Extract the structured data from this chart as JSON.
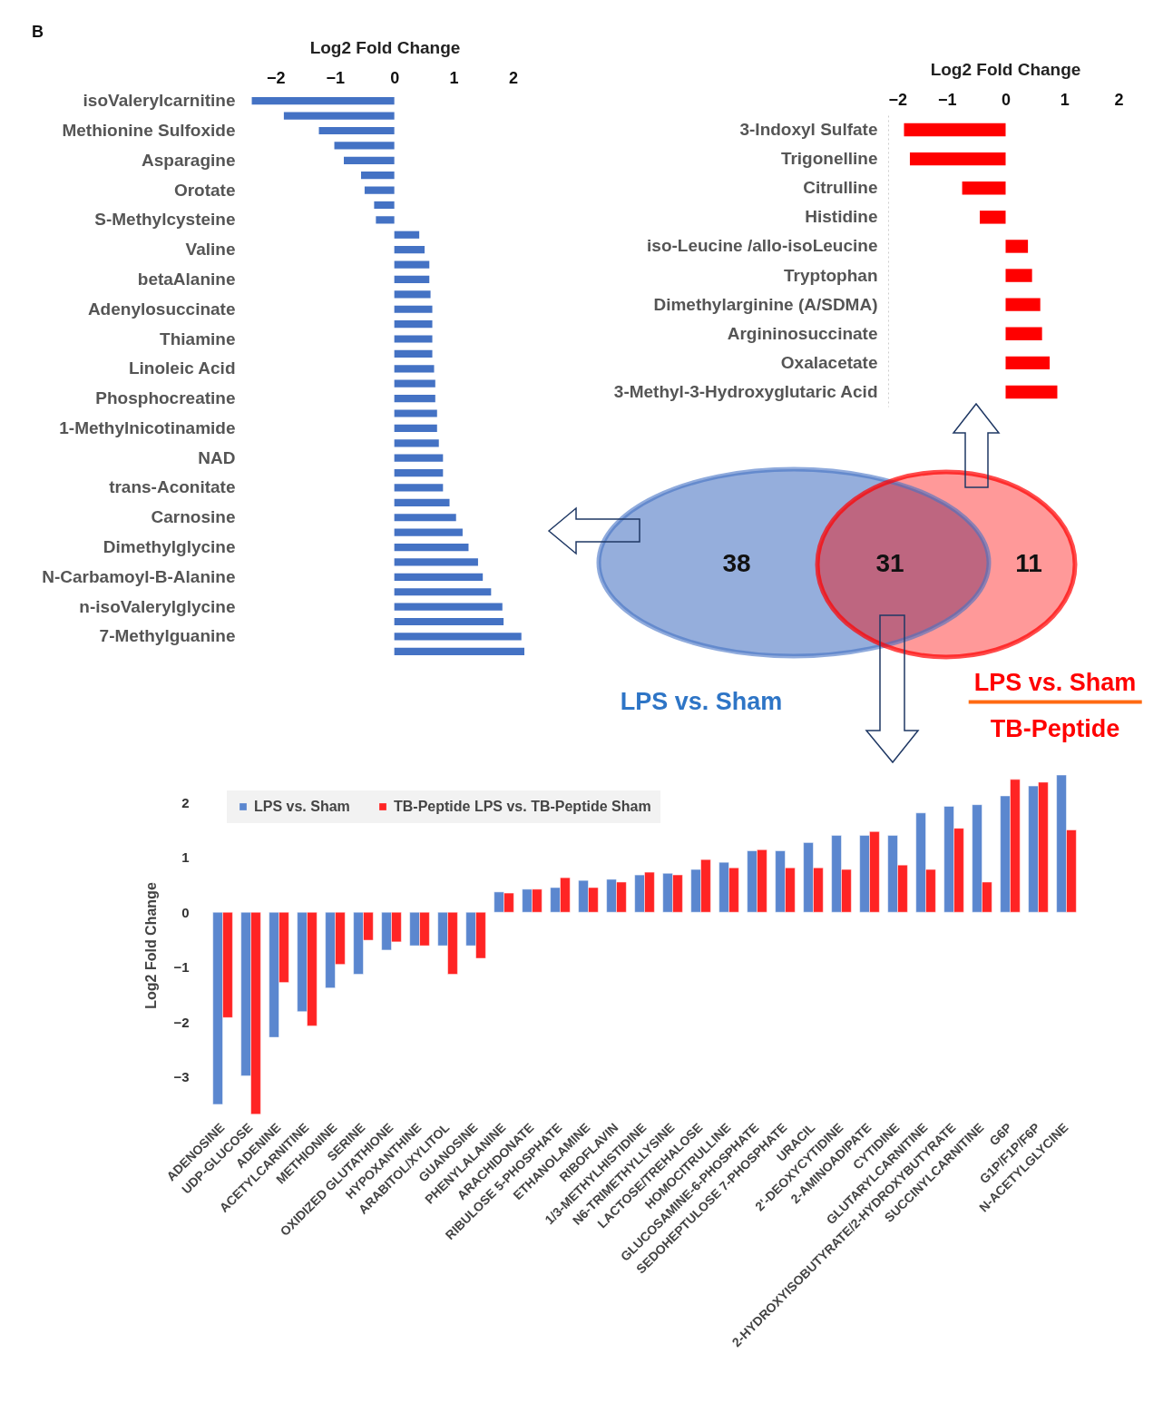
{
  "chart_data": [
    {
      "type": "bar",
      "orientation": "horizontal",
      "title": "Log2 Fold Change",
      "annotations": [
        "B"
      ],
      "categories": [
        "isoValerylcarnitine",
        null,
        "Methionine Sulfoxide",
        null,
        "Asparagine",
        null,
        "Orotate",
        null,
        "S-Methylcysteine",
        null,
        "Valine",
        null,
        "betaAlanine",
        null,
        "Adenylosuccinate",
        null,
        "Thiamine",
        null,
        "Linoleic Acid",
        null,
        "Phosphocreatine",
        null,
        "1-Methylnicotinamide",
        null,
        "NAD",
        null,
        "trans-Aconitate",
        null,
        "Carnosine",
        null,
        "Dimethylglycine",
        null,
        "N-Carbamoyl-B-Alanine",
        null,
        "n-isoValerylglycine",
        null,
        "7-Methylguanine",
        null
      ],
      "values": [
        -2.4,
        -1.86,
        -1.27,
        -1.01,
        -0.85,
        -0.56,
        -0.5,
        -0.34,
        -0.31,
        0.42,
        0.51,
        0.59,
        0.59,
        0.61,
        0.64,
        0.64,
        0.64,
        0.64,
        0.67,
        0.69,
        0.69,
        0.72,
        0.72,
        0.75,
        0.82,
        0.82,
        0.82,
        0.93,
        1.04,
        1.15,
        1.25,
        1.41,
        1.49,
        1.63,
        1.82,
        1.84,
        2.14,
        2.19
      ],
      "color": "#4472c4",
      "xlim": [
        -2.5,
        2.19
      ],
      "xticks": [
        -2,
        -1,
        0,
        1,
        2
      ]
    },
    {
      "type": "bar",
      "orientation": "horizontal",
      "title": "Log2 Fold Change",
      "categories": [
        "3-Indoxyl Sulfate",
        "Trigonelline",
        "Citrulline",
        "Histidine",
        "iso-Leucine /allo-isoLeucine",
        "Tryptophan",
        "Dimethylarginine (A/SDMA)",
        "Argininosuccinate",
        "Oxalacetate",
        "3-Methyl-3-Hydroxyglutaric Acid"
      ],
      "values": [
        -1.73,
        -1.63,
        -0.74,
        -0.44,
        0.38,
        0.45,
        0.59,
        0.62,
        0.75,
        0.88
      ],
      "color": "#ff0000",
      "xlim": [
        -2,
        2
      ],
      "xticks": [
        -2,
        -1,
        0,
        1,
        2
      ]
    },
    {
      "type": "other",
      "values": [
        38,
        31,
        11
      ],
      "data_labels": true,
      "colors": [
        "#95aedc",
        "#be6680",
        "#ff9999"
      ],
      "annotations": [
        "LPS vs. Sham",
        "LPS vs. Sham",
        "TB-Peptide"
      ]
    },
    {
      "type": "bar",
      "ylabel": "Log2 Fold Change",
      "legend": "top left",
      "categories": [
        "ADENOSINE",
        "UDP-GLUCOSE",
        "ADENINE",
        "ACETYLCARNITINE",
        "METHIONINE",
        "SERINE",
        "OXIDIZED GLUTATHIONE",
        "HYPOXANTHINE",
        "ARABITOL/XYLITOL",
        "GUANOSINE",
        "PHENYLALANINE",
        "ARACHIDONATE",
        "RIBULOSE 5-PHOSPHATE",
        "ETHANOLAMINE",
        "RIBOFLAVIN",
        "1/3-METHYLHISTIDINE",
        "N6-TRIMETHYLLYSINE",
        "LACTOSE/TREHALOSE",
        "HOMOCITRULLINE",
        "GLUCOSAMINE-6-PHOSPHATE",
        "SEDOHEPTULOSE 7-PHOSPHATE",
        "URACIL",
        "2'-DEOXYCYTIDINE",
        "2-AMINOADIPATE",
        "CYTIDINE",
        "GLUTARYLCARNITINE",
        "2-HYDROXYISOBUTYRATE/2-HYDROXYBUTYRATE",
        "SUCCINYLCARNITINE",
        "G6P",
        "G1P/F1P/F6P",
        "N-ACETYLGLYCINE"
      ],
      "series": [
        {
          "name": "LPS vs. Sham",
          "color": "#5b87cf",
          "values": [
            -3.5,
            -2.98,
            -2.28,
            -1.81,
            -1.38,
            -1.13,
            -0.69,
            -0.61,
            -0.61,
            -0.61,
            0.37,
            0.42,
            0.45,
            0.58,
            0.6,
            0.68,
            0.71,
            0.78,
            0.91,
            1.12,
            1.12,
            1.27,
            1.4,
            1.4,
            1.4,
            1.81,
            1.93,
            1.96,
            2.12,
            2.3,
            2.5
          ]
        },
        {
          "name": "TB-Peptide LPS vs. TB-Peptide Sham",
          "color": "#ff2424",
          "values": [
            -1.92,
            -3.68,
            -1.28,
            -2.07,
            -0.95,
            -0.51,
            -0.54,
            -0.61,
            -1.13,
            -0.84,
            0.35,
            0.42,
            0.63,
            0.45,
            0.55,
            0.73,
            0.68,
            0.96,
            0.81,
            1.14,
            0.81,
            0.81,
            0.78,
            1.47,
            0.86,
            0.78,
            1.53,
            0.55,
            2.42,
            2.37,
            1.5
          ]
        }
      ],
      "ylim": [
        -3.75,
        2.55
      ],
      "yticks": [
        -3,
        -2,
        -1,
        0,
        1,
        2
      ]
    }
  ]
}
